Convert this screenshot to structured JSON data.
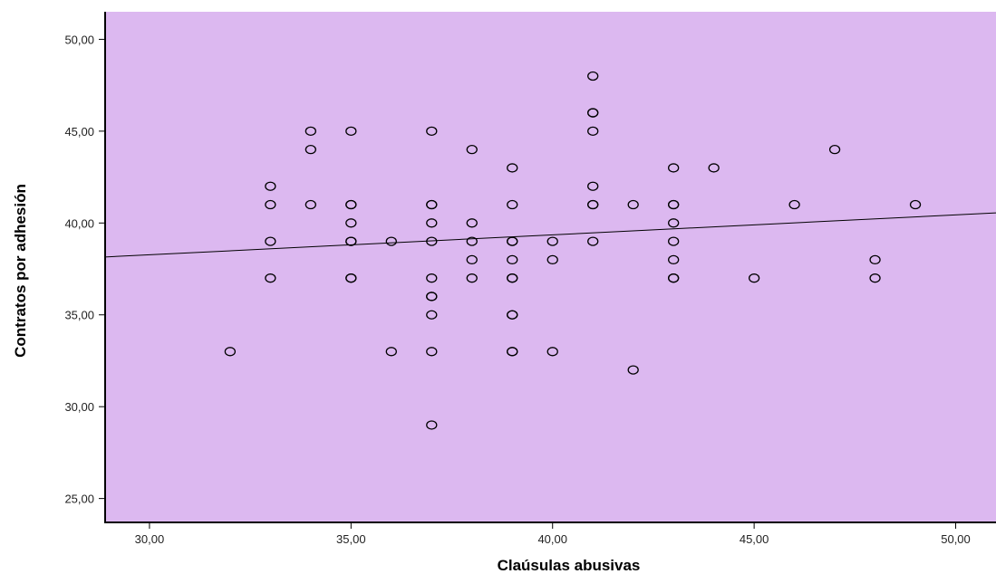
{
  "chart_data": {
    "type": "scatter",
    "title": "",
    "xlabel": "Claúsulas abusivas",
    "ylabel": "Contratos por adhesión",
    "xlim": [
      28.9,
      51.0
    ],
    "ylim": [
      23.7,
      51.5
    ],
    "xticks": [
      30,
      35,
      40,
      45,
      50
    ],
    "yticks": [
      25,
      30,
      35,
      40,
      45,
      50
    ],
    "xtick_labels": [
      "30,00",
      "35,00",
      "40,00",
      "45,00",
      "50,00"
    ],
    "ytick_labels": [
      "25,00",
      "30,00",
      "35,00",
      "40,00",
      "45,00",
      "50,00"
    ],
    "grid": false,
    "legend": "none",
    "colors": {
      "plot_background": "#dcb8f0",
      "marker_edge": "#000000",
      "fit_line": "#000000"
    },
    "points": [
      [
        32,
        33
      ],
      [
        33,
        42
      ],
      [
        33,
        41
      ],
      [
        33,
        39
      ],
      [
        33,
        37
      ],
      [
        34,
        45
      ],
      [
        34,
        44
      ],
      [
        34,
        41
      ],
      [
        35,
        45
      ],
      [
        35,
        41
      ],
      [
        35,
        41
      ],
      [
        35,
        40
      ],
      [
        35,
        39
      ],
      [
        35,
        39
      ],
      [
        35,
        37
      ],
      [
        35,
        37
      ],
      [
        36,
        39
      ],
      [
        36,
        33
      ],
      [
        37,
        45
      ],
      [
        37,
        41
      ],
      [
        37,
        41
      ],
      [
        37,
        40
      ],
      [
        37,
        39
      ],
      [
        37,
        37
      ],
      [
        37,
        36
      ],
      [
        37,
        36
      ],
      [
        37,
        35
      ],
      [
        37,
        33
      ],
      [
        37,
        29
      ],
      [
        38,
        44
      ],
      [
        38,
        40
      ],
      [
        38,
        39
      ],
      [
        38,
        38
      ],
      [
        38,
        37
      ],
      [
        39,
        43
      ],
      [
        39,
        41
      ],
      [
        39,
        39
      ],
      [
        39,
        39
      ],
      [
        39,
        38
      ],
      [
        39,
        37
      ],
      [
        39,
        37
      ],
      [
        39,
        35
      ],
      [
        39,
        35
      ],
      [
        39,
        33
      ],
      [
        39,
        33
      ],
      [
        40,
        39
      ],
      [
        40,
        38
      ],
      [
        40,
        33
      ],
      [
        41,
        48
      ],
      [
        41,
        46
      ],
      [
        41,
        46
      ],
      [
        41,
        45
      ],
      [
        41,
        42
      ],
      [
        41,
        41
      ],
      [
        41,
        41
      ],
      [
        41,
        39
      ],
      [
        42,
        41
      ],
      [
        42,
        32
      ],
      [
        43,
        43
      ],
      [
        43,
        41
      ],
      [
        43,
        41
      ],
      [
        43,
        40
      ],
      [
        43,
        39
      ],
      [
        43,
        38
      ],
      [
        43,
        37
      ],
      [
        43,
        37
      ],
      [
        44,
        43
      ],
      [
        45,
        37
      ],
      [
        46,
        41
      ],
      [
        47,
        44
      ],
      [
        48,
        38
      ],
      [
        48,
        37
      ],
      [
        49,
        41
      ]
    ],
    "fit_line": {
      "x": [
        28.9,
        51.0
      ],
      "y": [
        38.15,
        40.55
      ]
    }
  }
}
